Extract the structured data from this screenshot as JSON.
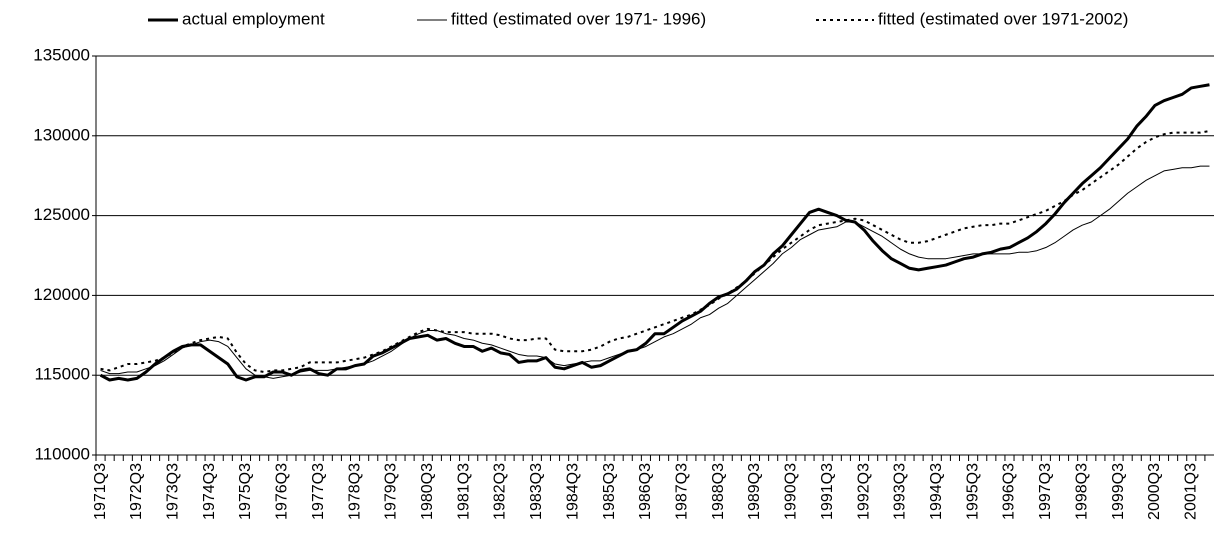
{
  "chart_data": {
    "type": "line",
    "legend": "top",
    "grid": true,
    "categories": [
      "1971Q3",
      null,
      null,
      null,
      "1972Q3",
      null,
      null,
      null,
      "1973Q3",
      null,
      null,
      null,
      "1974Q3",
      null,
      null,
      null,
      "1975Q3",
      null,
      null,
      null,
      "1976Q3",
      null,
      null,
      null,
      "1977Q3",
      null,
      null,
      null,
      "1978Q3",
      null,
      null,
      null,
      "1979Q3",
      null,
      null,
      null,
      "1980Q3",
      null,
      null,
      null,
      "1981Q3",
      null,
      null,
      null,
      "1982Q3",
      null,
      null,
      null,
      "1983Q3",
      null,
      null,
      null,
      "1984Q3",
      null,
      null,
      null,
      "1985Q3",
      null,
      null,
      null,
      "1986Q3",
      null,
      null,
      null,
      "1987Q3",
      null,
      null,
      null,
      "1988Q3",
      null,
      null,
      null,
      "1989Q3",
      null,
      null,
      null,
      "1990Q3",
      null,
      null,
      null,
      "1991Q3",
      null,
      null,
      null,
      "1992Q3",
      null,
      null,
      null,
      "1993Q3",
      null,
      null,
      null,
      "1994Q3",
      null,
      null,
      null,
      "1995Q3",
      null,
      null,
      null,
      "1996Q3",
      null,
      null,
      null,
      "1997Q3",
      null,
      null,
      null,
      "1998Q3",
      null,
      null,
      null,
      "1999Q3",
      null,
      null,
      null,
      "2000Q3",
      null,
      null,
      null,
      "2001Q3",
      null,
      null
    ],
    "ylim": [
      110000,
      135000
    ],
    "yticks": [
      110000,
      115000,
      120000,
      125000,
      130000,
      135000
    ],
    "series": [
      {
        "name": "actual employment",
        "color": "#000000",
        "line_width": 3,
        "dash": "solid",
        "values": [
          115000,
          114700,
          114800,
          114700,
          114800,
          115200,
          115700,
          116100,
          116500,
          116800,
          116900,
          116900,
          116500,
          116100,
          115700,
          114900,
          114700,
          114900,
          114900,
          115200,
          115200,
          115000,
          115300,
          115400,
          115100,
          115000,
          115400,
          115400,
          115600,
          115700,
          116200,
          116400,
          116700,
          117000,
          117300,
          117400,
          117500,
          117200,
          117300,
          117000,
          116800,
          116800,
          116500,
          116700,
          116400,
          116300,
          115800,
          115900,
          115900,
          116100,
          115500,
          115400,
          115600,
          115800,
          115500,
          115600,
          115900,
          116200,
          116500,
          116600,
          117000,
          117600,
          117600,
          118000,
          118400,
          118700,
          119000,
          119500,
          119900,
          120100,
          120400,
          120900,
          121500,
          121900,
          122600,
          123100,
          123800,
          124500,
          125200,
          125400,
          125200,
          125000,
          124700,
          124600,
          124100,
          123400,
          122800,
          122300,
          122000,
          121700,
          121600,
          121700,
          121800,
          121900,
          122100,
          122300,
          122400,
          122600,
          122700,
          122900,
          123000,
          123300,
          123600,
          124000,
          124500,
          125100,
          125800,
          126400,
          127000,
          127500,
          128000,
          128600,
          129200,
          129800,
          130600,
          131200,
          131900,
          132200,
          132400,
          132600,
          133000,
          133100,
          133200
        ]
      },
      {
        "name": "fitted (estimated over 1971- 1996)",
        "color": "#000000",
        "line_width": 1,
        "dash": "solid",
        "values": [
          115300,
          115100,
          115100,
          115200,
          115200,
          115400,
          115600,
          115900,
          116300,
          116700,
          116900,
          117100,
          117200,
          117100,
          116800,
          116100,
          115400,
          115000,
          114900,
          114800,
          114900,
          115000,
          115200,
          115300,
          115300,
          115300,
          115400,
          115500,
          115600,
          115700,
          115900,
          116200,
          116500,
          116900,
          117300,
          117600,
          117800,
          117800,
          117600,
          117500,
          117300,
          117200,
          117000,
          116900,
          116700,
          116500,
          116300,
          116200,
          116200,
          116100,
          115700,
          115600,
          115700,
          115800,
          115900,
          115900,
          116100,
          116300,
          116500,
          116600,
          116800,
          117100,
          117400,
          117600,
          117900,
          118200,
          118600,
          118800,
          119200,
          119500,
          120000,
          120500,
          121000,
          121500,
          122000,
          122600,
          123000,
          123500,
          123800,
          124100,
          124200,
          124300,
          124600,
          124600,
          124300,
          124000,
          123700,
          123300,
          122900,
          122600,
          122400,
          122300,
          122300,
          122300,
          122400,
          122500,
          122600,
          122600,
          122600,
          122600,
          122600,
          122700,
          122700,
          122800,
          123000,
          123300,
          123700,
          124100,
          124400,
          124600,
          125000,
          125400,
          125900,
          126400,
          126800,
          127200,
          127500,
          127800,
          127900,
          128000,
          128000,
          128100,
          128100
        ]
      },
      {
        "name": "fitted (estimated over 1971-2002)",
        "color": "#000000",
        "line_width": 2,
        "dash": "dotted",
        "values": [
          115400,
          115300,
          115500,
          115700,
          115700,
          115800,
          115900,
          116100,
          116400,
          116800,
          117000,
          117200,
          117300,
          117400,
          117300,
          116400,
          115700,
          115300,
          115200,
          115300,
          115300,
          115400,
          115500,
          115800,
          115800,
          115800,
          115800,
          115900,
          116000,
          116100,
          116300,
          116500,
          116800,
          117100,
          117400,
          117700,
          117900,
          117800,
          117700,
          117700,
          117700,
          117600,
          117600,
          117600,
          117500,
          117300,
          117200,
          117200,
          117300,
          117300,
          116600,
          116500,
          116500,
          116500,
          116600,
          116800,
          117100,
          117300,
          117400,
          117600,
          117800,
          118000,
          118200,
          118400,
          118600,
          118800,
          119100,
          119400,
          119800,
          120100,
          120500,
          120900,
          121400,
          121900,
          122400,
          122900,
          123300,
          123700,
          124100,
          124400,
          124500,
          124600,
          124700,
          124800,
          124700,
          124400,
          124100,
          123800,
          123500,
          123300,
          123300,
          123400,
          123600,
          123800,
          124000,
          124200,
          124300,
          124400,
          124400,
          124500,
          124500,
          124700,
          124900,
          125100,
          125300,
          125600,
          125900,
          126300,
          126600,
          127000,
          127400,
          127800,
          128200,
          128700,
          129200,
          129600,
          129900,
          130100,
          130200,
          130200,
          130200,
          130200,
          130300
        ]
      }
    ]
  }
}
